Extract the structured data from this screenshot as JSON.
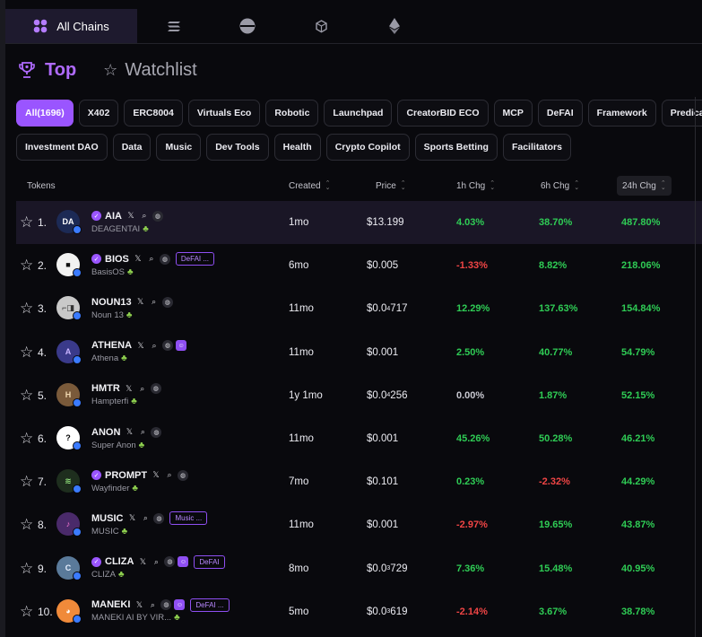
{
  "chains": {
    "all_label": "All Chains",
    "icons": [
      "solana-icon",
      "base-icon",
      "bnb-icon",
      "ethereum-icon"
    ]
  },
  "modes": {
    "top": "Top",
    "watchlist": "Watchlist"
  },
  "categories_row1": [
    "All(1696)",
    "X402",
    "ERC8004",
    "Virtuals Eco",
    "Robotic",
    "Launchpad",
    "CreatorBID ECO",
    "MCP",
    "DeFAI",
    "Framework",
    "Predication"
  ],
  "categories_row2": [
    "Investment DAO",
    "Data",
    "Music",
    "Dev Tools",
    "Health",
    "Crypto Copilot",
    "Sports Betting",
    "Facilitators"
  ],
  "table": {
    "headers": {
      "tokens": "Tokens",
      "created": "Created",
      "price": "Price",
      "h1": "1h Chg",
      "h6": "6h Chg",
      "h24": "24h Chg"
    },
    "rows": [
      {
        "rank": "1.",
        "symbol": "AIA",
        "name": "DEAGENTAI",
        "verified": true,
        "tag": "",
        "extra_icon": false,
        "created": "1mo",
        "price_pre": "$13.199",
        "price_sub": "",
        "price_post": "",
        "h1": "4.03%",
        "h6": "38.70%",
        "h24": "487.80%",
        "h1s": "pos",
        "h6s": "pos",
        "h24s": "pos",
        "avatar_text": "DA",
        "avatar_bg": "#1c2a55",
        "avatar_fg": "#ffffff"
      },
      {
        "rank": "2.",
        "symbol": "BIOS",
        "name": "BasisOS",
        "verified": true,
        "tag": "DeFAI ...",
        "extra_icon": false,
        "created": "6mo",
        "price_pre": "$0.005",
        "price_sub": "",
        "price_post": "",
        "h1": "-1.33%",
        "h6": "8.82%",
        "h24": "218.06%",
        "h1s": "neg",
        "h6s": "pos",
        "h24s": "pos",
        "avatar_text": "■",
        "avatar_bg": "#f2f2f2",
        "avatar_fg": "#111111"
      },
      {
        "rank": "3.",
        "symbol": "NOUN13",
        "name": "Noun 13",
        "verified": false,
        "tag": "",
        "extra_icon": false,
        "created": "11mo",
        "price_pre": "$0.0",
        "price_sub": "4",
        "price_post": "717",
        "h1": "12.29%",
        "h6": "137.63%",
        "h24": "154.84%",
        "h1s": "pos",
        "h6s": "pos",
        "h24s": "pos",
        "avatar_text": "⌐◨",
        "avatar_bg": "#c9c9c9",
        "avatar_fg": "#333333"
      },
      {
        "rank": "4.",
        "symbol": "ATHENA",
        "name": "Athena",
        "verified": false,
        "tag": "",
        "extra_icon": true,
        "created": "11mo",
        "price_pre": "$0.001",
        "price_sub": "",
        "price_post": "",
        "h1": "2.50%",
        "h6": "40.77%",
        "h24": "54.79%",
        "h1s": "pos",
        "h6s": "pos",
        "h24s": "pos",
        "avatar_text": "A",
        "avatar_bg": "#3a3a8a",
        "avatar_fg": "#c9b4ff"
      },
      {
        "rank": "5.",
        "symbol": "HMTR",
        "name": "Hampterfi",
        "verified": false,
        "tag": "",
        "extra_icon": false,
        "created": "1y 1mo",
        "price_pre": "$0.0",
        "price_sub": "4",
        "price_post": "256",
        "h1": "0.00%",
        "h6": "1.87%",
        "h24": "52.15%",
        "h1s": "neu",
        "h6s": "pos",
        "h24s": "pos",
        "avatar_text": "H",
        "avatar_bg": "#7a5a3a",
        "avatar_fg": "#f0d8b0"
      },
      {
        "rank": "6.",
        "symbol": "ANON",
        "name": "Super Anon",
        "verified": false,
        "tag": "",
        "extra_icon": false,
        "created": "11mo",
        "price_pre": "$0.001",
        "price_sub": "",
        "price_post": "",
        "h1": "45.26%",
        "h6": "50.28%",
        "h24": "46.21%",
        "h1s": "pos",
        "h6s": "pos",
        "h24s": "pos",
        "avatar_text": "?",
        "avatar_bg": "#ffffff",
        "avatar_fg": "#000000"
      },
      {
        "rank": "7.",
        "symbol": "PROMPT",
        "name": "Wayfinder",
        "verified": true,
        "tag": "",
        "extra_icon": false,
        "created": "7mo",
        "price_pre": "$0.101",
        "price_sub": "",
        "price_post": "",
        "h1": "0.23%",
        "h6": "-2.32%",
        "h24": "44.29%",
        "h1s": "pos",
        "h6s": "neg",
        "h24s": "pos",
        "avatar_text": "≋",
        "avatar_bg": "#1e2e1e",
        "avatar_fg": "#8fe07a"
      },
      {
        "rank": "8.",
        "symbol": "MUSIC",
        "name": "MUSIC",
        "verified": false,
        "tag": "Music ...",
        "extra_icon": false,
        "created": "11mo",
        "price_pre": "$0.001",
        "price_sub": "",
        "price_post": "",
        "h1": "-2.97%",
        "h6": "19.65%",
        "h24": "43.87%",
        "h1s": "neg",
        "h6s": "pos",
        "h24s": "pos",
        "avatar_text": "♪",
        "avatar_bg": "#4a2a6a",
        "avatar_fg": "#ff7ad8"
      },
      {
        "rank": "9.",
        "symbol": "CLIZA",
        "name": "CLIZA",
        "verified": true,
        "tag": "DeFAI",
        "extra_icon": true,
        "created": "8mo",
        "price_pre": "$0.0",
        "price_sub": "3",
        "price_post": "729",
        "h1": "7.36%",
        "h6": "15.48%",
        "h24": "40.95%",
        "h1s": "pos",
        "h6s": "pos",
        "h24s": "pos",
        "avatar_text": "C",
        "avatar_bg": "#5a7a9a",
        "avatar_fg": "#e8f0ff"
      },
      {
        "rank": "10.",
        "symbol": "MANEKI",
        "name": "MANEKI AI BY VIR...",
        "verified": false,
        "tag": "DeFAI ...",
        "extra_icon": true,
        "created": "5mo",
        "price_pre": "$0.0",
        "price_sub": "3",
        "price_post": "619",
        "h1": "-2.14%",
        "h6": "3.67%",
        "h24": "38.78%",
        "h1s": "neg",
        "h6s": "pos",
        "h24s": "pos",
        "avatar_text": "◕",
        "avatar_bg": "#f08a3a",
        "avatar_fg": "#ffffff"
      }
    ]
  },
  "colors": {
    "accent": "#9a55ff",
    "positive": "#2fcc55",
    "negative": "#f04545"
  }
}
